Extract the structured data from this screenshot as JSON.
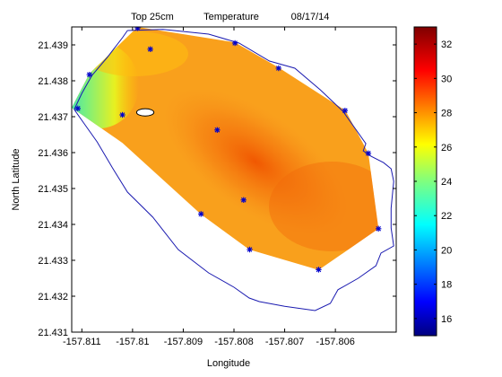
{
  "chart_data": {
    "type": "heatmap",
    "title_parts": [
      "Top 25cm",
      "Temperature",
      "08/17/14"
    ],
    "xlabel": "Longitude",
    "ylabel": "North Latitude",
    "xlim": [
      -157.8112,
      -157.8048
    ],
    "ylim": [
      21.431,
      21.4395
    ],
    "x_ticks": [
      -157.811,
      -157.81,
      -157.809,
      -157.808,
      -157.807,
      -157.806
    ],
    "x_tick_labels": [
      "-157.811",
      "-157.81",
      "-157.809",
      "-157.808",
      "-157.807",
      "-157.806"
    ],
    "y_ticks": [
      21.431,
      21.432,
      21.433,
      21.434,
      21.435,
      21.436,
      21.437,
      21.438,
      21.439
    ],
    "y_tick_labels": [
      "21.431",
      "21.432",
      "21.433",
      "21.434",
      "21.435",
      "21.436",
      "21.437",
      "21.438",
      "21.439"
    ],
    "colorbar": {
      "range": [
        15,
        33
      ],
      "ticks": [
        16,
        18,
        20,
        22,
        24,
        26,
        28,
        30,
        32
      ],
      "tick_labels": [
        "16",
        "18",
        "20",
        "22",
        "24",
        "26",
        "28",
        "30",
        "32"
      ],
      "colormap": "jet"
    },
    "stations": [
      {
        "x": -157.8099,
        "y": 21.43947
      },
      {
        "x": -157.80965,
        "y": 21.43888
      },
      {
        "x": -157.80798,
        "y": 21.43905
      },
      {
        "x": -157.80712,
        "y": 21.43835
      },
      {
        "x": -157.80581,
        "y": 21.43717
      },
      {
        "x": -157.80535,
        "y": 21.43598
      },
      {
        "x": -157.80515,
        "y": 21.43388
      },
      {
        "x": -157.80633,
        "y": 21.43274
      },
      {
        "x": -157.80781,
        "y": 21.43468
      },
      {
        "x": -157.80769,
        "y": 21.4333
      },
      {
        "x": -157.80865,
        "y": 21.43429
      },
      {
        "x": -157.80833,
        "y": 21.43663
      },
      {
        "x": -157.8102,
        "y": 21.43705
      },
      {
        "x": -157.81085,
        "y": 21.43817
      },
      {
        "x": -157.81108,
        "y": 21.43723
      }
    ],
    "interpolated_region": [
      [
        -157.8112,
        21.43725
      ],
      [
        -157.81085,
        21.4382
      ],
      [
        -157.8099,
        21.4395
      ],
      [
        -157.80798,
        21.43907
      ],
      [
        -157.80712,
        21.43837
      ],
      [
        -157.8058,
        21.43717
      ],
      [
        -157.80535,
        21.43598
      ],
      [
        -157.80515,
        21.43388
      ],
      [
        -157.80633,
        21.43273
      ],
      [
        -157.8077,
        21.4333
      ],
      [
        -157.80865,
        21.43428
      ],
      [
        -157.8102,
        21.43627
      ]
    ],
    "hole": {
      "cx": -157.80975,
      "cy": 21.43712,
      "rx": 0.00017,
      "ry": 0.00017
    },
    "coastline": [
      [
        -157.8101,
        21.4394
      ],
      [
        -157.8094,
        21.43943
      ],
      [
        -157.8085,
        21.4393
      ],
      [
        -157.8079,
        21.43905
      ],
      [
        -157.8073,
        21.43855
      ],
      [
        -157.8068,
        21.43835
      ],
      [
        -157.8063,
        21.43775
      ],
      [
        -157.80585,
        21.43715
      ],
      [
        -157.8056,
        21.43665
      ],
      [
        -157.8054,
        21.43625
      ],
      [
        -157.80545,
        21.43605
      ],
      [
        -157.8053,
        21.4359
      ],
      [
        -157.80505,
        21.43572
      ],
      [
        -157.8049,
        21.43555
      ],
      [
        -157.80485,
        21.4352
      ],
      [
        -157.8049,
        21.43445
      ],
      [
        -157.8049,
        21.4339
      ],
      [
        -157.80485,
        21.4334
      ],
      [
        -157.8051,
        21.4332
      ],
      [
        -157.8052,
        21.43285
      ],
      [
        -157.80555,
        21.4325
      ],
      [
        -157.80595,
        21.43218
      ],
      [
        -157.8061,
        21.4318
      ],
      [
        -157.8064,
        21.4316
      ],
      [
        -157.807,
        21.43172
      ],
      [
        -157.8075,
        21.43185
      ],
      [
        -157.8077,
        21.43195
      ],
      [
        -157.808,
        21.43225
      ],
      [
        -157.8085,
        21.43265
      ],
      [
        -157.8091,
        21.4333
      ],
      [
        -157.8096,
        21.4342
      ],
      [
        -157.8101,
        21.4349
      ],
      [
        -157.8104,
        21.43558
      ],
      [
        -157.8107,
        21.4363
      ],
      [
        -157.81095,
        21.4368
      ],
      [
        -157.81115,
        21.4372
      ],
      [
        -157.811,
        21.43765
      ],
      [
        -157.8108,
        21.43815
      ],
      [
        -157.8105,
        21.43865
      ],
      [
        -157.8102,
        21.4392
      ],
      [
        -157.8101,
        21.4394
      ]
    ]
  }
}
